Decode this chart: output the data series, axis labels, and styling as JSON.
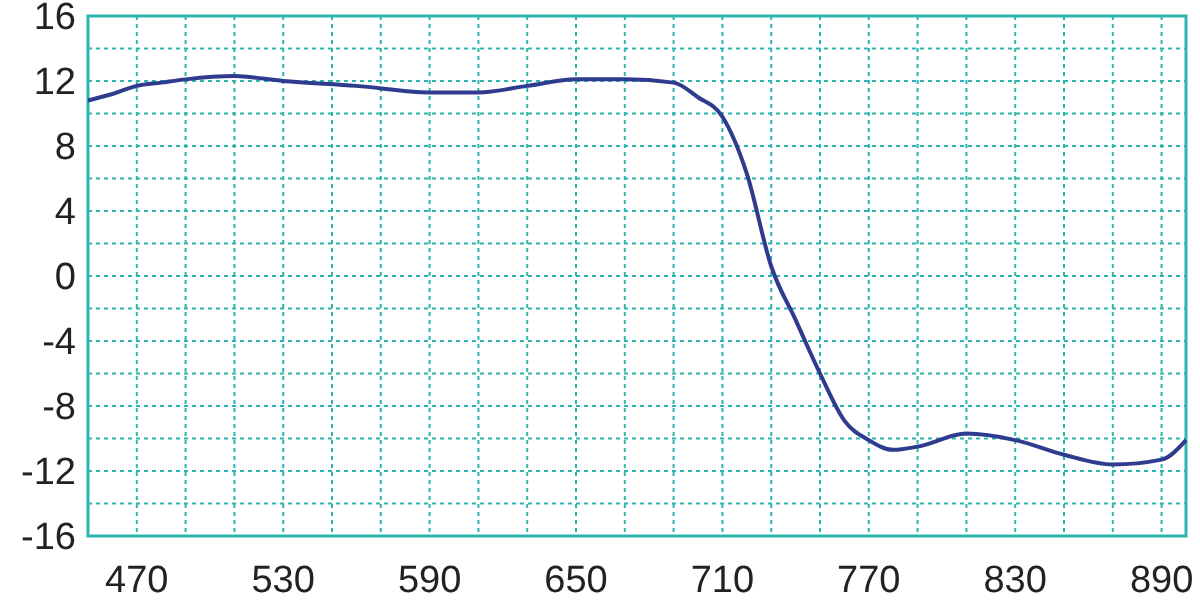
{
  "chart_data": {
    "type": "line",
    "x": [
      450,
      460,
      470,
      480,
      490,
      510,
      530,
      560,
      590,
      610,
      630,
      650,
      670,
      690,
      700,
      710,
      720,
      730,
      740,
      750,
      760,
      770,
      780,
      790,
      810,
      830,
      850,
      870,
      890,
      900
    ],
    "series": [
      {
        "color": "#2e3b8e",
        "values": [
          10.8,
          11.2,
          11.7,
          11.9,
          12.1,
          12.3,
          12.0,
          11.7,
          11.3,
          11.3,
          11.7,
          12.1,
          12.1,
          11.9,
          11.0,
          9.8,
          6.3,
          0.6,
          -2.7,
          -6.0,
          -8.9,
          -10.1,
          -10.7,
          -10.5,
          -9.7,
          -10.1,
          -11.0,
          -11.6,
          -11.3,
          -10.1
        ]
      }
    ],
    "xlim": [
      450,
      900
    ],
    "xticks": [
      470,
      {
        "value": 490,
        "label": null
      },
      {
        "value": 510,
        "label": null
      },
      530,
      {
        "value": 550,
        "label": null
      },
      {
        "value": 570,
        "label": null
      },
      590,
      {
        "value": 610,
        "label": null
      },
      {
        "value": 630,
        "label": null
      },
      650,
      {
        "value": 670,
        "label": null
      },
      {
        "value": 690,
        "label": null
      },
      710,
      {
        "value": 730,
        "label": null
      },
      {
        "value": 750,
        "label": null
      },
      770,
      {
        "value": 790,
        "label": null
      },
      {
        "value": 810,
        "label": null
      },
      830,
      {
        "value": 850,
        "label": null
      },
      {
        "value": 870,
        "label": null
      },
      890
    ],
    "ylim": [
      -16,
      16
    ],
    "yticks": [
      -16,
      {
        "value": -14,
        "label": null
      },
      -12,
      {
        "value": -10,
        "label": null
      },
      -8,
      {
        "value": -6,
        "label": null
      },
      -4,
      {
        "value": -2,
        "label": null
      },
      0,
      {
        "value": 2,
        "label": null
      },
      4,
      {
        "value": 6,
        "label": null
      },
      8,
      {
        "value": 10,
        "label": null
      },
      12,
      {
        "value": 14,
        "label": null
      },
      16
    ],
    "grid": true,
    "marker": "none",
    "line_style": "solid"
  }
}
